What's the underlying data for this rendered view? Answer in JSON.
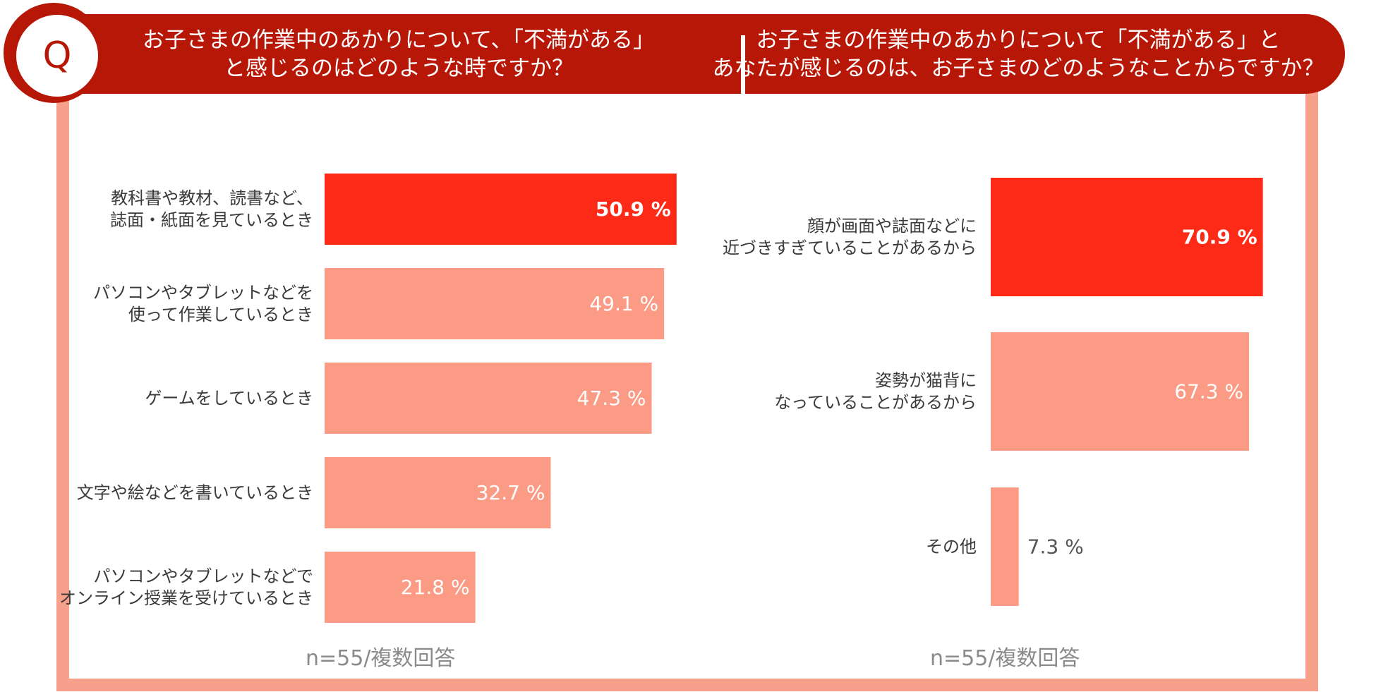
{
  "header": {
    "q_letter": "Q",
    "question_left_line1": "お子さまの作業中のあかりについて、「不満がある」",
    "question_left_line2": "と感じるのはどのような時ですか？",
    "question_right_line1": "お子さまの作業中のあかりについて「不満がある」と",
    "question_right_line2": "あなたが感じるのは、お子さまのどのようなことからですか？"
  },
  "colors": {
    "primary": "#b71707",
    "highlight": "#fe2a18",
    "bar": "#fb9b86",
    "frame": "#f7a08b"
  },
  "chart_data": [
    {
      "type": "bar",
      "orientation": "horizontal",
      "categories": [
        [
          "教科書や教材、読書など、",
          "誌面・紙面を見ているとき"
        ],
        [
          "パソコンやタブレットなどを",
          "使って作業しているとき"
        ],
        [
          "ゲームをしているとき"
        ],
        [
          "文字や絵などを書いているとき"
        ],
        [
          "パソコンやタブレットなどで",
          "オンライン授業を受けているとき"
        ]
      ],
      "values": [
        50.9,
        49.1,
        47.3,
        32.7,
        21.8
      ],
      "value_labels": [
        "50.9 %",
        "49.1 %",
        "47.3 %",
        "32.7 %",
        "21.8 %"
      ],
      "highlight_index": 0,
      "xlim": [
        0,
        100
      ],
      "note": "n=55/複数回答"
    },
    {
      "type": "bar",
      "orientation": "horizontal",
      "categories": [
        [
          "顔が画面や誌面などに",
          "近づきすぎていることがあるから"
        ],
        [
          "姿勢が猫背に",
          "なっていることがあるから"
        ],
        [
          "その他"
        ]
      ],
      "values": [
        70.9,
        67.3,
        7.3
      ],
      "value_labels": [
        "70.9 %",
        "67.3 %",
        "7.3 %"
      ],
      "highlight_index": 0,
      "xlim": [
        0,
        100
      ],
      "note": "n=55/複数回答"
    }
  ]
}
